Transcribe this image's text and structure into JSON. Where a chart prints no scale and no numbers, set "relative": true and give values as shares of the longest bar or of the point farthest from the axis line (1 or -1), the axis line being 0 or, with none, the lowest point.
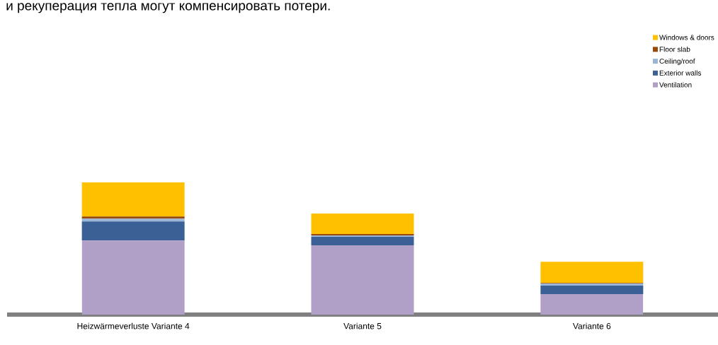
{
  "chart_data": {
    "type": "bar",
    "title": "и рекуперация тепла могут компенсировать потери.",
    "categories": [
      "Heizwärmeverluste Variante 4",
      "Variante 5",
      "Variante 6"
    ],
    "stacked": true,
    "relative": true,
    "legend": "top right",
    "series": [
      {
        "name": "Ventilation",
        "color": "#b0a0c8",
        "values": [
          0.561,
          0.524,
          0.155
        ]
      },
      {
        "name": "Exterior walls",
        "color": "#3a6096",
        "values": [
          0.144,
          0.064,
          0.064
        ]
      },
      {
        "name": "Ceiling/roof",
        "color": "#9bb5d6",
        "values": [
          0.021,
          0.011,
          0.016
        ]
      },
      {
        "name": "Floor slab",
        "color": "#984807",
        "values": [
          0.016,
          0.011,
          0.005
        ]
      },
      {
        "name": "Windows & doors",
        "color": "#ffc000",
        "values": [
          0.258,
          0.155,
          0.16
        ]
      }
    ]
  }
}
